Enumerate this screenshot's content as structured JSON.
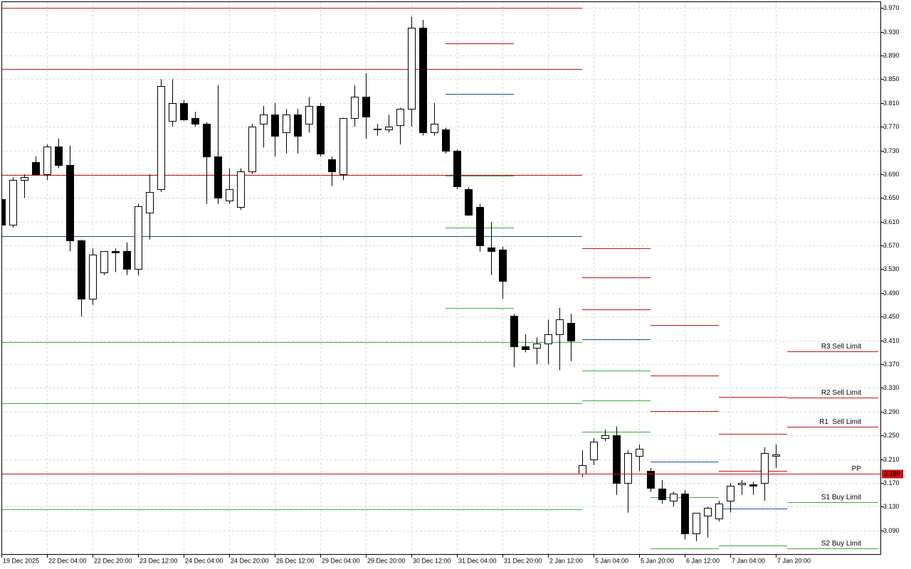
{
  "chart_data": {
    "type": "candlestick",
    "up_color": "#ffffff",
    "down_color": "#000000",
    "outline_color": "#000000",
    "grid": true,
    "categories": [
      "19 Dec 2025",
      null,
      null,
      null,
      "22 Dec 04:00",
      null,
      null,
      null,
      "22 Dec 20:00",
      null,
      null,
      null,
      "23 Dec 12:00",
      null,
      null,
      null,
      "24 Dec 04:00",
      null,
      null,
      null,
      "24 Dec 20:00",
      null,
      null,
      null,
      "26 Dec 12:00",
      null,
      null,
      null,
      "29 Dec 04:00",
      null,
      null,
      null,
      "29 Dec 20:00",
      null,
      null,
      null,
      "30 Dec 12:00",
      null,
      null,
      null,
      "31 Dec 04:00",
      null,
      null,
      null,
      "31 Dec 20:00",
      null,
      null,
      null,
      "2 Jan 12:00",
      null,
      null,
      null,
      "5 Jan 04:00",
      null,
      null,
      null,
      "5 Jan 20:00",
      null,
      null,
      null,
      "6 Jan 12:00",
      null,
      null,
      null,
      "7 Jan 04:00",
      null,
      null,
      null,
      "7 Jan 20:00"
    ],
    "open": [
      3.648,
      3.605,
      3.68,
      3.71,
      3.69,
      3.737,
      3.705,
      3.578,
      3.48,
      3.525,
      3.56,
      3.56,
      3.53,
      3.625,
      3.665,
      3.78,
      3.81,
      3.785,
      3.775,
      3.72,
      3.645,
      3.635,
      3.695,
      3.775,
      3.79,
      3.76,
      3.79,
      3.775,
      3.805,
      3.715,
      3.69,
      3.785,
      3.82,
      3.767,
      3.765,
      3.772,
      3.8,
      3.937,
      3.76,
      3.765,
      3.73,
      3.665,
      3.635,
      3.566,
      3.563,
      3.452,
      3.4,
      3.398,
      3.405,
      3.42,
      3.44,
      3.186,
      3.21,
      3.245,
      3.25,
      3.17,
      3.215,
      3.19,
      3.16,
      3.14,
      3.152,
      3.085,
      3.115,
      3.11,
      3.14,
      3.168,
      3.167,
      3.17,
      3.215
    ],
    "high": [
      3.655,
      3.685,
      3.69,
      3.72,
      3.74,
      3.75,
      3.738,
      3.58,
      3.565,
      3.56,
      3.565,
      3.575,
      3.64,
      3.69,
      3.85,
      3.85,
      3.815,
      3.795,
      3.778,
      3.84,
      3.7,
      3.7,
      3.775,
      3.805,
      3.81,
      3.8,
      3.8,
      3.82,
      3.81,
      3.72,
      3.785,
      3.84,
      3.86,
      3.775,
      3.79,
      3.802,
      3.955,
      3.95,
      3.81,
      3.768,
      3.732,
      3.668,
      3.64,
      3.61,
      3.568,
      3.455,
      3.42,
      3.415,
      3.445,
      3.465,
      3.455,
      3.225,
      3.245,
      3.26,
      3.265,
      3.225,
      3.235,
      3.195,
      3.175,
      3.155,
      3.158,
      3.118,
      3.13,
      3.14,
      3.17,
      3.175,
      3.172,
      3.23,
      3.235
    ],
    "low": [
      3.6,
      3.6,
      3.65,
      3.688,
      3.68,
      3.7,
      3.56,
      3.45,
      3.47,
      3.52,
      3.525,
      3.52,
      3.52,
      3.58,
      3.66,
      3.77,
      3.78,
      3.77,
      3.64,
      3.64,
      3.64,
      3.63,
      3.69,
      3.735,
      3.72,
      3.725,
      3.725,
      3.76,
      3.72,
      3.67,
      3.68,
      3.77,
      3.75,
      3.755,
      3.76,
      3.74,
      3.77,
      3.755,
      3.755,
      3.725,
      3.665,
      3.62,
      3.56,
      3.52,
      3.48,
      3.365,
      3.39,
      3.37,
      3.37,
      3.36,
      3.375,
      3.18,
      3.2,
      3.24,
      3.15,
      3.12,
      3.19,
      3.155,
      3.135,
      3.13,
      3.075,
      3.072,
      3.078,
      3.105,
      3.12,
      3.15,
      3.15,
      3.14,
      3.195
    ],
    "close": [
      3.605,
      3.68,
      3.685,
      3.69,
      3.737,
      3.705,
      3.578,
      3.48,
      3.555,
      3.56,
      3.558,
      3.53,
      3.636,
      3.66,
      3.838,
      3.81,
      3.782,
      3.775,
      3.72,
      3.65,
      3.665,
      3.695,
      3.77,
      3.79,
      3.755,
      3.79,
      3.755,
      3.805,
      3.725,
      3.695,
      3.785,
      3.82,
      3.787,
      3.765,
      3.77,
      3.8,
      3.937,
      3.76,
      3.775,
      3.73,
      3.67,
      3.622,
      3.57,
      3.56,
      3.51,
      3.4,
      3.395,
      3.405,
      3.42,
      3.445,
      3.41,
      3.2,
      3.24,
      3.25,
      3.17,
      3.22,
      3.228,
      3.162,
      3.142,
      3.152,
      3.085,
      3.12,
      3.128,
      3.135,
      3.165,
      3.17,
      3.165,
      3.22,
      3.218
    ],
    "ylim": [
      3.049,
      3.981
    ],
    "yticks": [
      {
        "value": 3.97,
        "label": "3.970"
      },
      {
        "value": 3.93,
        "label": "3.930"
      },
      {
        "value": 3.89,
        "label": "3.890"
      },
      {
        "value": 3.85,
        "label": "3.850"
      },
      {
        "value": 3.81,
        "label": "3.810"
      },
      {
        "value": 3.77,
        "label": "3.770"
      },
      {
        "value": 3.73,
        "label": "3.730"
      },
      {
        "value": 3.69,
        "label": "3.690"
      },
      {
        "value": 3.65,
        "label": "3.650"
      },
      {
        "value": 3.61,
        "label": "3.610"
      },
      {
        "value": 3.57,
        "label": "3.570"
      },
      {
        "value": 3.53,
        "label": "3.530"
      },
      {
        "value": 3.49,
        "label": "3.490"
      },
      {
        "value": 3.45,
        "label": "3.450"
      },
      {
        "value": 3.41,
        "label": "3.410"
      },
      {
        "value": 3.37,
        "label": "3.370"
      },
      {
        "value": 3.33,
        "label": "3.330"
      },
      {
        "value": 3.29,
        "label": "3.290"
      },
      {
        "value": 3.25,
        "label": "3.250"
      },
      {
        "value": 3.21,
        "label": "3.210"
      },
      {
        "value": 3.17,
        "label": "3.170"
      },
      {
        "value": 3.13,
        "label": "3.130"
      },
      {
        "value": 3.09,
        "label": "3.090"
      }
    ],
    "levels": [
      {
        "from": 0,
        "to": 51,
        "lines": [
          {
            "value": 3.97,
            "color": "#cc1010"
          },
          {
            "value": 3.867,
            "color": "#cc1010"
          },
          {
            "value": 3.689,
            "color": "#cc1010"
          },
          {
            "value": 3.586,
            "color": "#1a4fa0"
          },
          {
            "value": 3.407,
            "color": "#33b033"
          },
          {
            "value": 3.304,
            "color": "#33b033"
          },
          {
            "value": 3.126,
            "color": "#33b033"
          }
        ]
      },
      {
        "from": 39,
        "to": 45,
        "lines": [
          {
            "value": 3.91,
            "color": "#cc1010"
          },
          {
            "value": 3.825,
            "color": "#1a4fa0"
          },
          {
            "value": 3.688,
            "color": "#33b033"
          },
          {
            "value": 3.6,
            "color": "#33b033"
          },
          {
            "value": 3.465,
            "color": "#33b033"
          }
        ]
      },
      {
        "from": 51,
        "to": 57,
        "lines": [
          {
            "value": 3.565,
            "color": "#cc1010"
          },
          {
            "value": 3.516,
            "color": "#cc1010"
          },
          {
            "value": 3.462,
            "color": "#cc1010"
          },
          {
            "value": 3.412,
            "color": "#1a4fa0"
          },
          {
            "value": 3.359,
            "color": "#33b033"
          },
          {
            "value": 3.309,
            "color": "#33b033"
          },
          {
            "value": 3.256,
            "color": "#33b033"
          }
        ]
      },
      {
        "from": 57,
        "to": 63,
        "lines": [
          {
            "value": 3.436,
            "color": "#cc1010"
          },
          {
            "value": 3.351,
            "color": "#cc1010"
          },
          {
            "value": 3.291,
            "color": "#cc1010"
          },
          {
            "value": 3.206,
            "color": "#1a4fa0"
          },
          {
            "value": 3.146,
            "color": "#33b033"
          },
          {
            "value": 3.06,
            "color": "#33b033"
          }
        ]
      },
      {
        "from": 63,
        "to": 69,
        "lines": [
          {
            "value": 3.315,
            "color": "#cc1010"
          },
          {
            "value": 3.253,
            "color": "#cc1010"
          },
          {
            "value": 3.19,
            "color": "#cc1010"
          },
          {
            "value": 3.127,
            "color": "#1a4fa0"
          },
          {
            "value": 3.065,
            "color": "#33b033"
          }
        ]
      },
      {
        "from": 69,
        "to": 77,
        "lines": [
          {
            "value": 3.392,
            "color": "#cc1010",
            "label": "R3 Sell Limit"
          },
          {
            "value": 3.314,
            "color": "#cc1010",
            "label": "R2 Sell Limit"
          },
          {
            "value": 3.265,
            "color": "#cc1010",
            "label": "R1  Sell Limit"
          },
          {
            "value": 3.186,
            "color": "#1a4fa0",
            "label": "PP"
          },
          {
            "value": 3.138,
            "color": "#33b033",
            "label": "S1 Buy Limit"
          },
          {
            "value": 3.06,
            "color": "#33b033",
            "label": "S2 Buy Limit"
          }
        ]
      }
    ],
    "price": 3.186,
    "price_color": "#cc1010"
  }
}
